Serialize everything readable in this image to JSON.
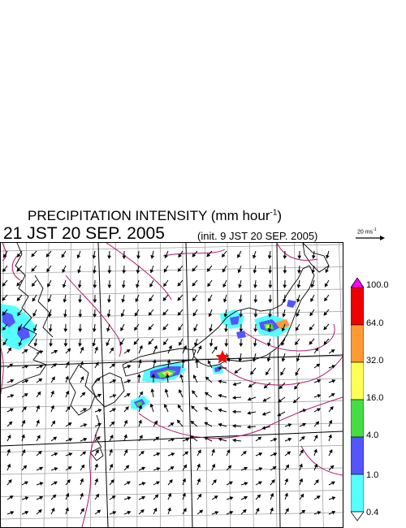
{
  "title": {
    "text": "PRECIPITATION INTENSITY (mm hour",
    "exp": "-1",
    "close": ")"
  },
  "valid_time": "21 JST 20 SEP. 2005",
  "init_time": "(init. 9 JST 20 SEP. 2005)",
  "vector_scale": {
    "value": "20 ms",
    "exp": "-1"
  },
  "map": {
    "storm_marker": "star",
    "colors": {
      "coast": "#000000",
      "grid": "#999999",
      "isobar": "#b0186a",
      "marker": "#ff0000"
    }
  },
  "colorbar": {
    "labels": [
      "100.0",
      "64.0",
      "32.0",
      "16.0",
      "4.0",
      "1.0",
      "0.4"
    ],
    "colors": [
      "#ff00ff",
      "#ee0000",
      "#ff9933",
      "#ffff55",
      "#44dd44",
      "#5555ff",
      "#55ffff",
      "#ffffff"
    ]
  }
}
